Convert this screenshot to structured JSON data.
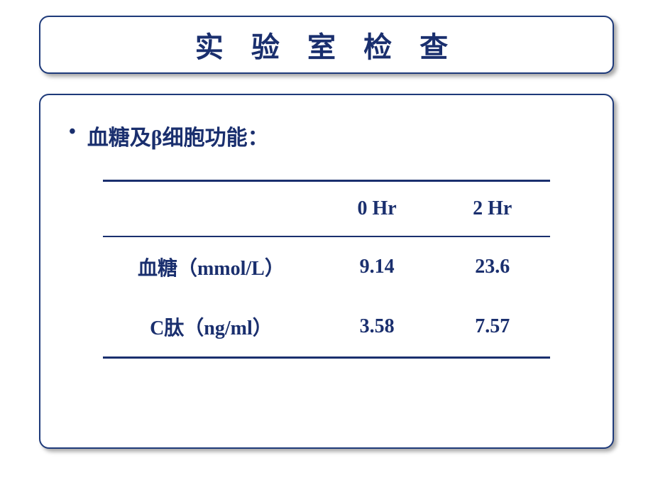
{
  "title": "实 验 室 检 查",
  "bullet": "血糖及β细胞功能：",
  "table": {
    "columns": [
      "",
      "0 Hr",
      "2 Hr"
    ],
    "rows": [
      {
        "label": "血糖（mmol/L）",
        "v0": "9.14",
        "v1": "23.6"
      },
      {
        "label": "C肽（ng/ml）",
        "v0": "3.58",
        "v1": "7.57"
      }
    ],
    "text_color": "#1a2f6e",
    "border_color": "#1a2f6e",
    "background_color": "#ffffff",
    "title_fontsize": 40,
    "body_fontsize": 28
  }
}
